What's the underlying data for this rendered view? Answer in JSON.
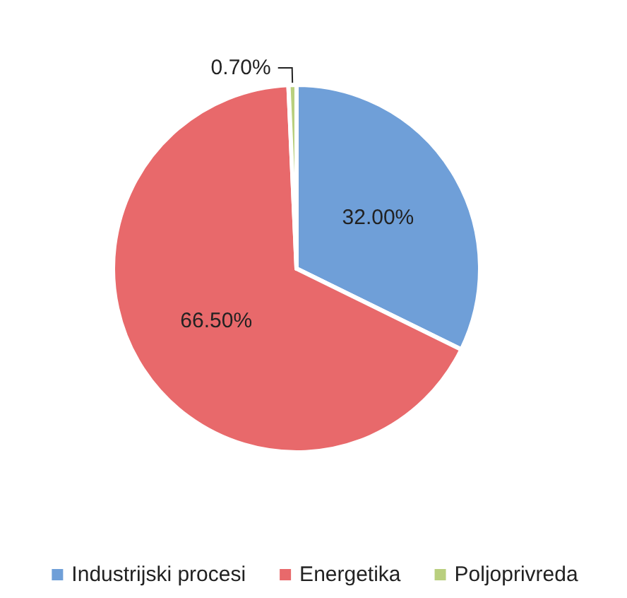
{
  "chart_data": {
    "type": "pie",
    "categories": [
      "Industrijski procesi",
      "Energetika",
      "Poljoprivreda"
    ],
    "values": [
      32.0,
      66.5,
      0.7
    ],
    "colors": [
      "#6f9fd8",
      "#e8696b",
      "#b9cf7e"
    ],
    "value_labels": [
      "32.00%",
      "66.50%",
      "0.70%"
    ],
    "legend": "bottom"
  }
}
